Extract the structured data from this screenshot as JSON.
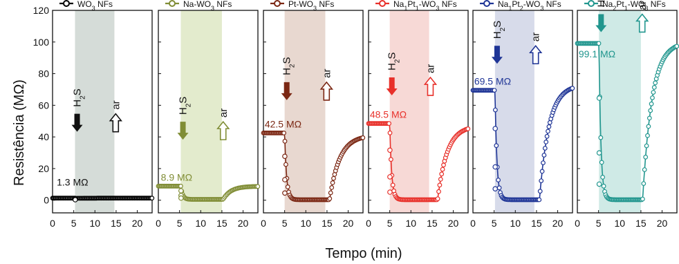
{
  "figure": {
    "ylabel": "Resistência (MΩ)",
    "xlabel": "Tempo (min)"
  },
  "chart_data": {
    "type": "line",
    "shared_y_ticks": [
      "0",
      "20",
      "40",
      "60",
      "80",
      "100",
      "120"
    ],
    "x_ticks": [
      "0",
      "5",
      "10",
      "15",
      "20"
    ],
    "xlim": [
      0,
      23.5
    ],
    "ylim": [
      -8,
      120
    ],
    "xlabel": "Tempo (min)",
    "ylabel": "Resistência (MΩ)",
    "panels": [
      {
        "legend": {
          "pre": "WO",
          "sub": "3",
          "post": " NFs"
        },
        "color": "#000000",
        "shade": "#d5dcd8",
        "baseline": 1.3,
        "gas_on": 5.3,
        "gas_off": 14.6,
        "low": 0.2,
        "recover": 0.0,
        "final": 1.3,
        "recover_rate": 0.4,
        "annotation": "1.3 MΩ",
        "h2s": "H2S",
        "air": "ar",
        "arrow_y": 45
      },
      {
        "legend": {
          "pre": "Na-WO",
          "sub": "3",
          "post": " NFs"
        },
        "color": "#808d35",
        "shade": "#e3ebcd",
        "baseline": 8.9,
        "gas_on": 5.3,
        "gas_off": 15.0,
        "low": 0.5,
        "recover": 15.3,
        "final": 8.8,
        "recover_rate": 0.55,
        "annotation": "8.9 MΩ",
        "h2s": "H2S",
        "air": "ar",
        "arrow_y": 40
      },
      {
        "legend": {
          "pre": "Pt-WO",
          "sub": "3",
          "post": " NFs"
        },
        "color": "#7b2713",
        "shade": "#e8d8d0",
        "baseline": 42.5,
        "gas_on": 5.0,
        "gas_off": 14.6,
        "low": 0.3,
        "recover": 15.6,
        "final": 41.0,
        "recover_rate": 0.42,
        "annotation": "42.5 MΩ",
        "h2s": "H2S",
        "air": "ar",
        "arrow_y": 65
      },
      {
        "legend": {
          "pre": "Na",
          "sub": "1",
          "mid": "Pt",
          "sub2": "1",
          "post": "-WO",
          "sub3": "3",
          "post2": " NFs"
        },
        "color": "#e8302a",
        "shade": "#f7d9d6",
        "baseline": 48.5,
        "gas_on": 5.0,
        "gas_off": 14.3,
        "low": 0.3,
        "recover": 16.3,
        "final": 47.0,
        "recover_rate": 0.45,
        "annotation": "48.5 MΩ",
        "h2s": "H2S",
        "air": "ar",
        "arrow_y": 68
      },
      {
        "legend": {
          "pre": "Na",
          "sub": "1",
          "mid": "Pt",
          "sub2": "2",
          "post": "-WO",
          "sub3": "3",
          "post2": " NFs"
        },
        "color": "#1f3596",
        "shade": "#d7dbea",
        "baseline": 69.5,
        "gas_on": 5.2,
        "gas_off": 14.5,
        "low": 0.3,
        "recover": 15.7,
        "final": 73.0,
        "recover_rate": 0.45,
        "annotation": "69.5 MΩ",
        "h2s": "H2S",
        "air": "ar",
        "arrow_y": 88
      },
      {
        "legend": {
          "pre": "Na",
          "sub": "2",
          "mid": "Pt",
          "sub2": "1",
          "post": "-WO",
          "sub3": "3",
          "post2": " NFs"
        },
        "color": "#21968e",
        "shade": "#cfeae6",
        "baseline": 99.1,
        "gas_on": 5.1,
        "gas_off": 15.0,
        "low": 0.3,
        "recover": 15.4,
        "final": 100.0,
        "recover_rate": 0.45,
        "annotation": "99.1 MΩ",
        "h2s": "H2S",
        "air": "ar",
        "arrow_y": 108
      }
    ]
  }
}
